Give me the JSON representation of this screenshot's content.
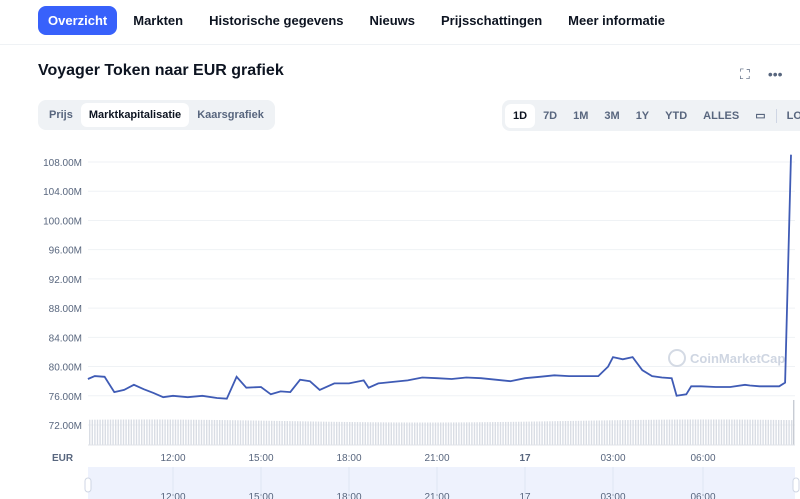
{
  "tabs": [
    {
      "label": "Overzicht",
      "active": true
    },
    {
      "label": "Markten"
    },
    {
      "label": "Historische gegevens"
    },
    {
      "label": "Nieuws"
    },
    {
      "label": "Prijsschattingen"
    },
    {
      "label": "Meer informatie"
    }
  ],
  "chart_title": "Voyager Token naar EUR grafiek",
  "header_icons": [
    "fullscreen-icon",
    "more-icon"
  ],
  "chart_types": [
    {
      "label": "Prijs"
    },
    {
      "label": "Marktkapitalisatie",
      "active": true
    },
    {
      "label": "Kaarsgrafiek"
    }
  ],
  "ranges": [
    {
      "label": "1D",
      "active": true
    },
    {
      "label": "7D"
    },
    {
      "label": "1M"
    },
    {
      "label": "3M"
    },
    {
      "label": "1Y"
    },
    {
      "label": "YTD"
    },
    {
      "label": "ALLES"
    }
  ],
  "log_label": "LOG",
  "watermark": "CoinMarketCap",
  "accent": "#3861fb",
  "line_color": "#3f5bb5",
  "chart_data": {
    "type": "line",
    "currency_label": "EUR",
    "yticks": [
      "72.00M",
      "76.00M",
      "80.00M",
      "84.00M",
      "88.00M",
      "92.00M",
      "96.00M",
      "100.00M",
      "104.00M",
      "108.00M"
    ],
    "ytick_values": [
      72,
      76,
      80,
      84,
      88,
      92,
      96,
      100,
      104,
      108
    ],
    "ylim": [
      72,
      108
    ],
    "xticks": [
      "12:00",
      "15:00",
      "18:00",
      "21:00",
      "17",
      "03:00",
      "06:00"
    ],
    "grid": true,
    "unit": "M EUR",
    "points": [
      [
        "16 09:06",
        78.3
      ],
      [
        "16 09:20",
        78.7
      ],
      [
        "16 09:40",
        78.6
      ],
      [
        "16 10:00",
        76.5
      ],
      [
        "16 10:20",
        76.8
      ],
      [
        "16 10:40",
        77.5
      ],
      [
        "16 11:00",
        76.9
      ],
      [
        "16 11:20",
        76.4
      ],
      [
        "16 11:40",
        75.8
      ],
      [
        "16 12:00",
        76.0
      ],
      [
        "16 12:30",
        75.8
      ],
      [
        "16 13:00",
        76.0
      ],
      [
        "16 13:30",
        75.7
      ],
      [
        "16 13:50",
        75.6
      ],
      [
        "16 14:10",
        78.6
      ],
      [
        "16 14:30",
        77.1
      ],
      [
        "16 15:00",
        77.2
      ],
      [
        "16 15:20",
        76.2
      ],
      [
        "16 15:40",
        76.6
      ],
      [
        "16 16:00",
        76.5
      ],
      [
        "16 16:20",
        78.2
      ],
      [
        "16 16:40",
        78.0
      ],
      [
        "16 17:00",
        76.8
      ],
      [
        "16 17:30",
        77.7
      ],
      [
        "16 18:00",
        77.7
      ],
      [
        "16 18:30",
        78.1
      ],
      [
        "16 18:40",
        77.1
      ],
      [
        "16 19:00",
        77.7
      ],
      [
        "16 19:30",
        77.9
      ],
      [
        "16 20:00",
        78.1
      ],
      [
        "16 20:30",
        78.5
      ],
      [
        "16 21:00",
        78.4
      ],
      [
        "16 21:30",
        78.3
      ],
      [
        "16 22:00",
        78.5
      ],
      [
        "16 22:30",
        78.4
      ],
      [
        "16 23:00",
        78.2
      ],
      [
        "16 23:30",
        78.0
      ],
      [
        "17 00:00",
        78.4
      ],
      [
        "17 00:30",
        78.6
      ],
      [
        "17 01:00",
        78.8
      ],
      [
        "17 01:30",
        78.7
      ],
      [
        "17 02:00",
        78.7
      ],
      [
        "17 02:30",
        78.7
      ],
      [
        "17 02:50",
        80.0
      ],
      [
        "17 03:00",
        81.3
      ],
      [
        "17 03:20",
        81.0
      ],
      [
        "17 03:40",
        81.3
      ],
      [
        "17 04:00",
        79.5
      ],
      [
        "17 04:20",
        78.7
      ],
      [
        "17 04:40",
        78.5
      ],
      [
        "17 05:00",
        78.4
      ],
      [
        "17 05:10",
        76.0
      ],
      [
        "17 05:30",
        76.2
      ],
      [
        "17 05:40",
        77.3
      ],
      [
        "17 06:00",
        77.3
      ],
      [
        "17 06:30",
        77.2
      ],
      [
        "17 07:00",
        77.2
      ],
      [
        "17 07:30",
        77.5
      ],
      [
        "17 07:40",
        77.4
      ],
      [
        "17 08:00",
        77.3
      ],
      [
        "17 08:40",
        77.3
      ],
      [
        "17 08:52",
        77.8
      ],
      [
        "17 09:04",
        109.0
      ]
    ]
  }
}
